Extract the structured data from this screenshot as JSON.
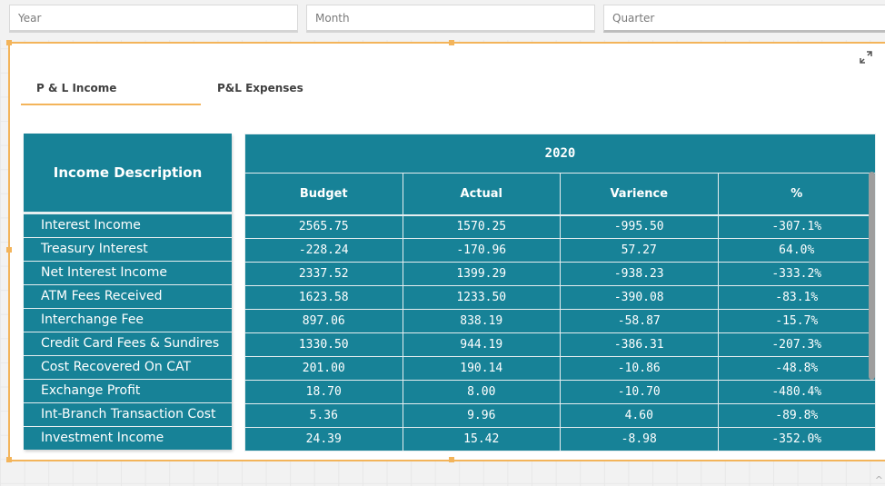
{
  "filters": {
    "year_label": "Year",
    "month_label": "Month",
    "quarter_label": "Quarter"
  },
  "tabs": [
    {
      "label": "P & L Income",
      "active": true
    },
    {
      "label": "P&L Expenses",
      "active": false
    }
  ],
  "table": {
    "description_header": "Income Description",
    "year": "2020",
    "columns": [
      "Budget",
      "Actual",
      "Varience",
      "%"
    ],
    "rows": [
      {
        "description": "Interest Income",
        "budget": "2565.75",
        "actual": "1570.25",
        "varience": "-995.50",
        "pct": "-307.1%"
      },
      {
        "description": "Treasury Interest",
        "budget": "-228.24",
        "actual": "-170.96",
        "varience": "57.27",
        "pct": "64.0%"
      },
      {
        "description": "Net Interest Income",
        "budget": "2337.52",
        "actual": "1399.29",
        "varience": "-938.23",
        "pct": "-333.2%"
      },
      {
        "description": "ATM Fees Received",
        "budget": "1623.58",
        "actual": "1233.50",
        "varience": "-390.08",
        "pct": "-83.1%"
      },
      {
        "description": "Interchange Fee",
        "budget": "897.06",
        "actual": "838.19",
        "varience": "-58.87",
        "pct": "-15.7%"
      },
      {
        "description": "Credit Card Fees & Sundires",
        "budget": "1330.50",
        "actual": "944.19",
        "varience": "-386.31",
        "pct": "-207.3%"
      },
      {
        "description": "Cost Recovered On CAT",
        "budget": "201.00",
        "actual": "190.14",
        "varience": "-10.86",
        "pct": "-48.8%"
      },
      {
        "description": "Exchange Profit",
        "budget": "18.70",
        "actual": "8.00",
        "varience": "-10.70",
        "pct": "-480.4%"
      },
      {
        "description": "Int-Branch Transaction Cost",
        "budget": "5.36",
        "actual": "9.96",
        "varience": "4.60",
        "pct": "-89.8%"
      },
      {
        "description": "Investment Income",
        "budget": "24.39",
        "actual": "15.42",
        "varience": "-8.98",
        "pct": "-352.0%"
      }
    ]
  },
  "icons": {
    "expand": "expand-arrows-icon"
  },
  "colors": {
    "accent": "#f3b45a",
    "table_bg": "#178297"
  },
  "corner_glyph": "^"
}
